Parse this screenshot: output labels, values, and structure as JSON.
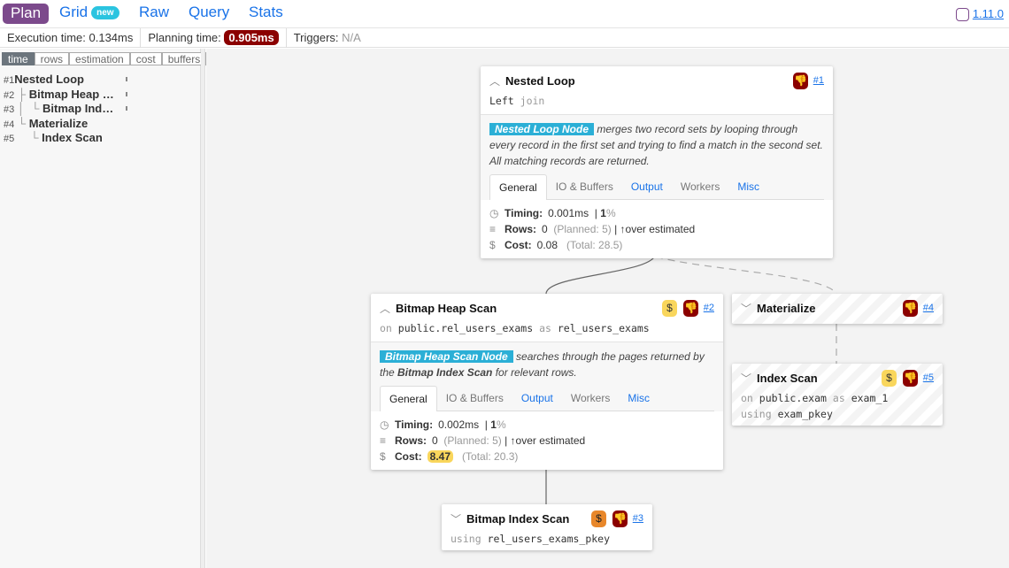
{
  "nav": {
    "plan": "Plan",
    "grid": "Grid",
    "grid_badge": "new",
    "raw": "Raw",
    "query": "Query",
    "stats": "Stats",
    "version": "1.11.0"
  },
  "stats": {
    "execution_label": "Execution time:",
    "execution": "0.134ms",
    "planning_label": "Planning time:",
    "planning": "0.905ms",
    "triggers_label": "Triggers:",
    "triggers": "N/A"
  },
  "sidebar": {
    "tabs": [
      "time",
      "rows",
      "estimation",
      "cost",
      "buffers"
    ],
    "active_tab": "time",
    "tree": [
      {
        "id": "#1",
        "prefix": "",
        "label": "Nested Loop"
      },
      {
        "id": "#2",
        "prefix": "├ ",
        "label": "Bitmap Heap …"
      },
      {
        "id": "#3",
        "prefix": "│  └ ",
        "label": "Bitmap Ind…"
      },
      {
        "id": "#4",
        "prefix": "└ ",
        "label": "Materialize"
      },
      {
        "id": "#5",
        "prefix": "    └ ",
        "label": "Index Scan"
      }
    ]
  },
  "colors": {
    "plan": "#7c4a8c",
    "planning_badge": "#8b0000",
    "node_highlight": "#2bafd6",
    "cost_badge": "#f9d65c"
  },
  "nodes": {
    "n1": {
      "title": "Nested Loop",
      "id": "#1",
      "sub1": "Left",
      "sub2": "join",
      "hl": "Nested Loop Node",
      "desc": " merges two record sets by looping through every record in the first set and trying to find a match in the second set. All matching records are returned.",
      "tabs": [
        "General",
        "IO & Buffers",
        "Output",
        "Workers",
        "Misc"
      ],
      "timing_label": "Timing:",
      "timing": "0.001ms",
      "timing_pct": "1",
      "rows_label": "Rows:",
      "rows": "0",
      "planned": "(Planned: 5)",
      "estimate": "over estimated",
      "cost_label": "Cost:",
      "cost": "0.08",
      "total": "(Total: 28.5)"
    },
    "n2": {
      "title": "Bitmap Heap Scan",
      "id": "#2",
      "on": "on",
      "relation": "public.rel_users_exams",
      "as": "as",
      "alias": "rel_users_exams",
      "hl": "Bitmap Heap Scan Node",
      "desc1": " searches through the pages returned by the ",
      "desc_b": "Bitmap Index Scan",
      "desc2": " for relevant rows.",
      "tabs": [
        "General",
        "IO & Buffers",
        "Output",
        "Workers",
        "Misc"
      ],
      "timing_label": "Timing:",
      "timing": "0.002ms",
      "timing_pct": "1",
      "rows_label": "Rows:",
      "rows": "0",
      "planned": "(Planned: 5)",
      "estimate": "over estimated",
      "cost_label": "Cost:",
      "cost": "8.47",
      "total": "(Total: 20.3)"
    },
    "n3": {
      "title": "Bitmap Index Scan",
      "id": "#3",
      "using": "using",
      "index": "rel_users_exams_pkey"
    },
    "n4": {
      "title": "Materialize",
      "id": "#4"
    },
    "n5": {
      "title": "Index Scan",
      "id": "#5",
      "on": "on",
      "relation": "public.exam",
      "as": "as",
      "alias": "exam_1",
      "using": "using",
      "index": "exam_pkey"
    }
  }
}
